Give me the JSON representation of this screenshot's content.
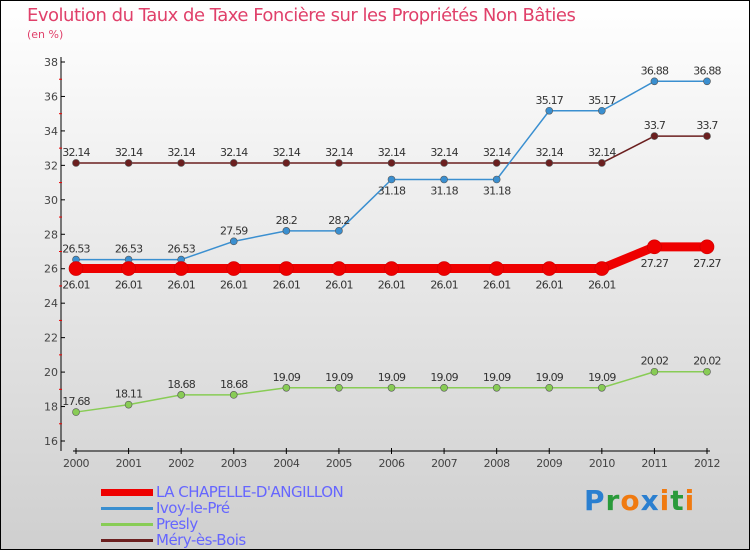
{
  "chart_data": {
    "type": "line",
    "title": "Evolution du Taux de Taxe Foncière sur les Propriétés Non Bâties",
    "ylabel": "(en %)",
    "xlabel": "",
    "x": [
      "2000",
      "2001",
      "2002",
      "2003",
      "2004",
      "2005",
      "2006",
      "2007",
      "2008",
      "2009",
      "2010",
      "2011",
      "2012"
    ],
    "ylim": [
      16,
      38
    ],
    "yticks": [
      16,
      18,
      20,
      22,
      24,
      26,
      28,
      30,
      32,
      34,
      36,
      38
    ],
    "grid": false,
    "legend_position": "bottom-left",
    "series": [
      {
        "name": "LA CHAPELLE-D'ANGILLON",
        "color": "#ee0000",
        "values": [
          26.01,
          26.01,
          26.01,
          26.01,
          26.01,
          26.01,
          26.01,
          26.01,
          26.01,
          26.01,
          26.01,
          27.27,
          27.27
        ]
      },
      {
        "name": "Ivoy-le-Pré",
        "color": "#3a8fd0",
        "values": [
          26.53,
          26.53,
          26.53,
          27.59,
          28.2,
          28.2,
          31.18,
          31.18,
          31.18,
          35.17,
          35.17,
          36.88,
          36.88
        ]
      },
      {
        "name": "Presly",
        "color": "#88cc55",
        "values": [
          17.68,
          18.11,
          18.68,
          18.68,
          19.09,
          19.09,
          19.09,
          19.09,
          19.09,
          19.09,
          19.09,
          20.02,
          20.02
        ]
      },
      {
        "name": "Méry-ès-Bois",
        "color": "#6b1f1f",
        "values": [
          32.14,
          32.14,
          32.14,
          32.14,
          32.14,
          32.14,
          32.14,
          32.14,
          32.14,
          32.14,
          32.14,
          33.7,
          33.7
        ]
      }
    ]
  },
  "logo": "Proxiti"
}
